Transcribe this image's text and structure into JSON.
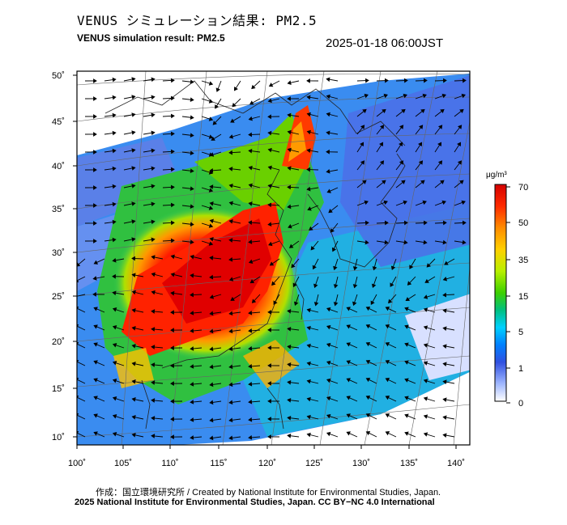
{
  "header": {
    "title_jp": "VENUS シミュレーション結果: PM2.5",
    "title_en": "VENUS simulation result: PM2.5",
    "timestamp": "2025-01-18 06:00JST"
  },
  "map": {
    "lat_ticks": [
      "50˚",
      "45˚",
      "40˚",
      "35˚",
      "30˚",
      "25˚",
      "20˚",
      "15˚",
      "10˚"
    ],
    "lon_ticks": [
      "100˚",
      "105˚",
      "110˚",
      "115˚",
      "120˚",
      "125˚",
      "130˚",
      "135˚",
      "140˚"
    ],
    "lat_values": [
      50,
      45,
      40,
      35,
      30,
      25,
      20,
      15,
      10
    ],
    "lon_values": [
      100,
      105,
      110,
      115,
      120,
      125,
      130,
      135,
      140
    ]
  },
  "colorbar": {
    "unit": "μg/m³",
    "labels": [
      "70",
      "50",
      "35",
      "15",
      "5",
      "1",
      "0"
    ],
    "colors": [
      "#d40000",
      "#ff2a00",
      "#ff8c00",
      "#ffd000",
      "#b8f000",
      "#3cd000",
      "#00c080",
      "#00d0ff",
      "#0080ff",
      "#3050e0",
      "#a0b8ff",
      "#ffffff"
    ]
  },
  "footer": {
    "credit_line1": "作成：国立環境研究所 / Created by National Institute for Environmental Studies, Japan.",
    "credit_line2": "2025 National Institute for Environmental Studies, Japan. CC BY−NC 4.0 International"
  }
}
